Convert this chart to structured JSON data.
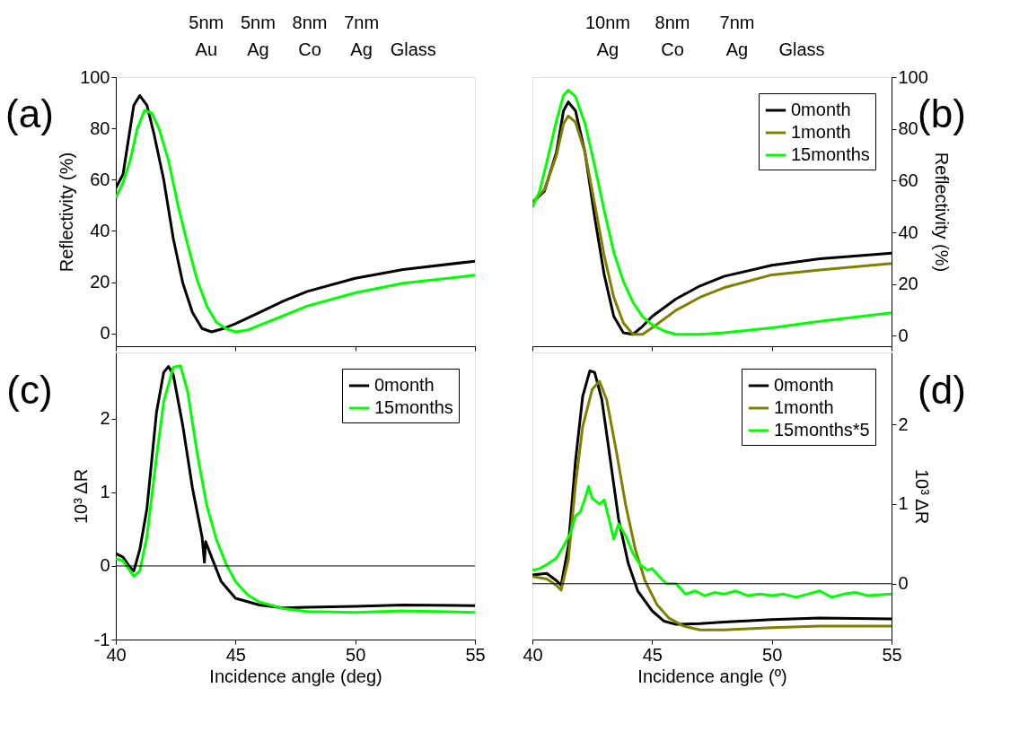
{
  "chart_data": [
    {
      "type": "line",
      "title": "(a)",
      "ylabel": "Reflectivity (%)",
      "xlim": [
        40,
        55
      ],
      "xticks": [
        40,
        45,
        50,
        55
      ],
      "ylim": [
        -5,
        100
      ],
      "yticks": [
        0,
        20,
        40,
        60,
        80,
        100
      ],
      "tick_labels": "y",
      "grid": false,
      "legend": false,
      "marker": "none",
      "line_style": "solid",
      "annotations": [
        "5nm",
        "5nm",
        "8nm",
        "7nm",
        "Au",
        "Ag",
        "Co",
        "Ag",
        "Glass"
      ],
      "series": [
        {
          "color": "#000000",
          "x": [
            40,
            40.3,
            40.75,
            41.0,
            41.3,
            41.6,
            42.0,
            42.4,
            42.8,
            43.2,
            43.6,
            44,
            44.5,
            45,
            46,
            47,
            48,
            50,
            52,
            55
          ],
          "values": [
            56.8,
            62,
            89,
            92.8,
            89,
            77.6,
            60,
            37,
            19.6,
            8.2,
            1.9,
            0.6,
            1.9,
            3.8,
            8.2,
            12.6,
            16.4,
            21.5,
            24.9,
            28.2
          ]
        },
        {
          "color": "#00ff00",
          "x": [
            40,
            40.3,
            40.6,
            40.9,
            41.2,
            41.5,
            41.8,
            42.2,
            42.6,
            43,
            43.4,
            43.8,
            44.2,
            44.6,
            45,
            45.5,
            46,
            47,
            48,
            50,
            52,
            55
          ],
          "values": [
            53,
            58.7,
            67.5,
            80,
            87,
            86,
            80,
            67.5,
            49.9,
            34.7,
            20.8,
            10.7,
            4.4,
            1.9,
            0.6,
            1.3,
            3.2,
            6.9,
            10.7,
            15.8,
            19.6,
            22.7
          ]
        }
      ]
    },
    {
      "type": "line",
      "title": "(b)",
      "y2label": "Reflectivity (%)",
      "xlim": [
        40,
        55
      ],
      "xticks": [
        40,
        45,
        50,
        55
      ],
      "y2lim": [
        -4,
        100
      ],
      "y2ticks": [
        0,
        20,
        40,
        60,
        80,
        100
      ],
      "tick_labels": "y",
      "grid": false,
      "legend": "top right",
      "marker": "none",
      "line_style": "solid",
      "annotations": [
        "10nm",
        "8nm",
        "7nm",
        "Ag",
        "Co",
        "Ag",
        "Glass"
      ],
      "series": [
        {
          "name": "0month",
          "axis": "y2",
          "color": "#000000",
          "x": [
            40,
            40.5,
            41,
            41.3,
            41.5,
            41.8,
            42.2,
            42.6,
            43,
            43.4,
            43.8,
            44.2,
            44.6,
            45,
            46,
            47,
            48,
            50,
            52,
            55
          ],
          "values": [
            51.6,
            55.9,
            70.8,
            87,
            90.4,
            87,
            70.8,
            46,
            23.6,
            7.5,
            1.2,
            0.6,
            3.7,
            7.5,
            14.3,
            19.3,
            23,
            27.3,
            29.8,
            32
          ]
        },
        {
          "name": "1month",
          "axis": "y2",
          "color": "#808000",
          "x": [
            40,
            40.5,
            41,
            41.3,
            41.5,
            41.8,
            42.2,
            42.6,
            43,
            43.4,
            43.8,
            44.2,
            44.6,
            45,
            46,
            47,
            48,
            50,
            52,
            55
          ],
          "values": [
            51.6,
            56.5,
            69.6,
            82,
            85,
            82.6,
            70.8,
            51,
            31,
            14.9,
            5,
            0.6,
            0.6,
            3.1,
            9.9,
            14.9,
            18.6,
            23.6,
            25.5,
            28
          ]
        },
        {
          "name": "15months",
          "axis": "y2",
          "color": "#00ff00",
          "x": [
            40,
            40.3,
            40.6,
            41,
            41.3,
            41.5,
            41.8,
            42.2,
            42.6,
            43,
            43.4,
            43.8,
            44.2,
            44.6,
            45,
            45.5,
            46,
            47,
            48,
            50,
            52,
            55
          ],
          "values": [
            49.7,
            55.9,
            67,
            83,
            93,
            95,
            92.5,
            82,
            65.8,
            48.4,
            32.3,
            21,
            13,
            7.5,
            4.3,
            1.9,
            0.6,
            0.6,
            1.2,
            3.1,
            5.6,
            8.9
          ]
        }
      ]
    },
    {
      "type": "line",
      "title": "(c)",
      "xlabel": "Incidence angle (deg)",
      "ylabel": "10³ ΔR",
      "xlim": [
        40,
        55
      ],
      "xticks": [
        40,
        45,
        50,
        55
      ],
      "ylim": [
        -1,
        2.9
      ],
      "yticks": [
        -1,
        0,
        1,
        2
      ],
      "grid": false,
      "legend": "top right",
      "marker": "none",
      "line_style": "solid",
      "ref_lines": [
        {
          "axis": "y",
          "value": 0,
          "color": "#000000"
        }
      ],
      "series": [
        {
          "name": "0month",
          "color": "#000000",
          "x": [
            40,
            40.3,
            40.55,
            40.75,
            41,
            41.3,
            41.7,
            42,
            42.2,
            42.4,
            42.8,
            43.2,
            43.6,
            43.7,
            43.75,
            44,
            44.4,
            45,
            46,
            47,
            48,
            50,
            52,
            55
          ],
          "values": [
            0.17,
            0.12,
            0,
            -0.07,
            0.22,
            0.78,
            2.09,
            2.63,
            2.71,
            2.6,
            1.9,
            1.06,
            0.4,
            0.05,
            0.33,
            0.12,
            -0.21,
            -0.44,
            -0.53,
            -0.57,
            -0.56,
            -0.55,
            -0.53,
            -0.54
          ]
        },
        {
          "name": "15months",
          "color": "#00ff00",
          "x": [
            40,
            40.3,
            40.75,
            41,
            41.3,
            41.7,
            42,
            42.4,
            42.7,
            43,
            43.4,
            43.8,
            44.2,
            44.6,
            45,
            45.5,
            46,
            47,
            48,
            50,
            52,
            55
          ],
          "values": [
            0.1,
            0.07,
            -0.14,
            -0.07,
            0.4,
            1.48,
            2.23,
            2.7,
            2.72,
            2.37,
            1.53,
            0.82,
            0.36,
            0.03,
            -0.21,
            -0.39,
            -0.49,
            -0.58,
            -0.62,
            -0.63,
            -0.61,
            -0.63
          ]
        }
      ]
    },
    {
      "type": "line",
      "title": "(d)",
      "xlabel": "Incidence angle (º)",
      "y2label": "10³ ΔR",
      "xlim": [
        40,
        55
      ],
      "xticks": [
        40,
        45,
        50,
        55
      ],
      "y2lim": [
        -0.7,
        2.9
      ],
      "y2ticks": [
        0,
        1,
        2
      ],
      "grid": false,
      "legend": "top right",
      "marker": "none",
      "line_style": "solid",
      "ref_lines": [
        {
          "axis": "y2",
          "value": 0,
          "color": "#000000"
        }
      ],
      "series": [
        {
          "name": "0month",
          "axis": "y2",
          "color": "#000000",
          "x": [
            40,
            40.6,
            41,
            41.2,
            41.5,
            41.8,
            42.1,
            42.4,
            42.6,
            42.9,
            43.2,
            43.6,
            44,
            44.4,
            45,
            45.5,
            46,
            47,
            48,
            50,
            52,
            55
          ],
          "values": [
            0.11,
            0.13,
            0.04,
            -0.02,
            0.47,
            1.54,
            2.35,
            2.67,
            2.65,
            2.31,
            1.67,
            0.81,
            0.26,
            -0.09,
            -0.34,
            -0.47,
            -0.51,
            -0.5,
            -0.48,
            -0.45,
            -0.43,
            -0.44
          ]
        },
        {
          "name": "1month",
          "axis": "y2",
          "color": "#808000",
          "x": [
            40,
            40.6,
            41,
            41.2,
            41.5,
            41.8,
            42.1,
            42.5,
            42.8,
            43.1,
            43.5,
            43.9,
            44.3,
            44.7,
            45.2,
            45.7,
            46.3,
            47,
            48,
            50,
            52,
            55
          ],
          "values": [
            0.09,
            0.06,
            -0.02,
            -0.08,
            0.3,
            1.24,
            1.97,
            2.44,
            2.54,
            2.31,
            1.67,
            0.98,
            0.43,
            0.04,
            -0.26,
            -0.43,
            -0.53,
            -0.58,
            -0.58,
            -0.55,
            -0.53,
            -0.53
          ]
        },
        {
          "name": "15months*5",
          "axis": "y2",
          "color": "#00ff00",
          "x": [
            40,
            40.3,
            40.6,
            41,
            41.3,
            41.6,
            41.8,
            42,
            42.2,
            42.35,
            42.5,
            42.8,
            43,
            43.2,
            43.4,
            43.6,
            43.9,
            44.2,
            44.5,
            44.8,
            45,
            45.3,
            45.6,
            46,
            46.4,
            46.8,
            47.2,
            47.6,
            48,
            48.5,
            49,
            49.5,
            50,
            50.5,
            51,
            51.5,
            52,
            52.5,
            53,
            53.5,
            54,
            55
          ],
          "values": [
            0.17,
            0.19,
            0.24,
            0.32,
            0.47,
            0.64,
            0.85,
            0.9,
            1.07,
            1.22,
            1.07,
            1.0,
            1.05,
            0.81,
            0.56,
            0.75,
            0.6,
            0.38,
            0.24,
            0.17,
            0.19,
            0.09,
            0,
            0,
            -0.13,
            -0.09,
            -0.15,
            -0.11,
            -0.13,
            -0.09,
            -0.15,
            -0.13,
            -0.15,
            -0.13,
            -0.17,
            -0.13,
            -0.09,
            -0.17,
            -0.13,
            -0.11,
            -0.15,
            -0.13
          ]
        }
      ]
    }
  ]
}
